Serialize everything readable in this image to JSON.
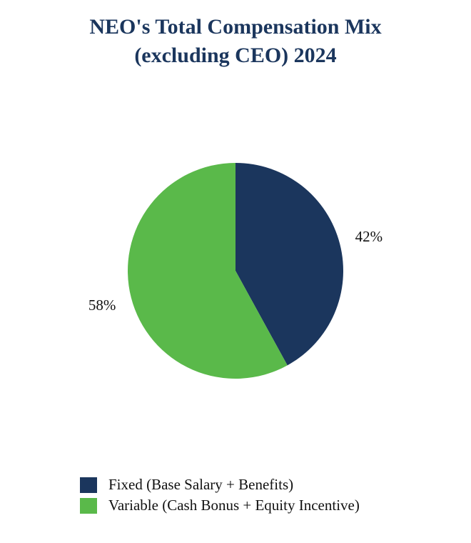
{
  "chart_data": {
    "type": "pie",
    "title": "NEO's Total Compensation Mix",
    "subtitle": "(excluding CEO) 2024",
    "slices": [
      {
        "name": "Fixed (Base Salary + Benefits)",
        "value": 42,
        "label": "42%",
        "color": "#1b365d"
      },
      {
        "name": "Variable (Cash Bonus + Equity Incentive)",
        "value": 58,
        "label": "58%",
        "color": "#5ab94a"
      }
    ],
    "start_angle_deg": 0,
    "direction": "clockwise",
    "legend_position": "bottom-left"
  }
}
